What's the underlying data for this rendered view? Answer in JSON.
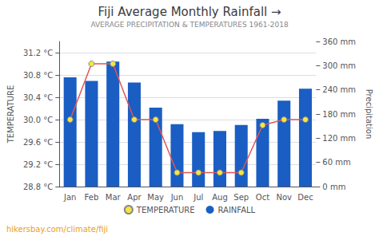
{
  "chart_data": {
    "type": "bar",
    "title": "Fiji Average Monthly Rainfall →",
    "subtitle": "AVERAGE PRECIPITATION & TEMPERATURES 1961-2018",
    "footer": "hikersbay.com/climate/fiji",
    "y_label": "TEMPERATURE",
    "y2_label": "Precipitation",
    "categories": [
      "Jan",
      "Feb",
      "Mar",
      "Apr",
      "May",
      "Jun",
      "Jul",
      "Aug",
      "Sep",
      "Oct",
      "Nov",
      "Dec"
    ],
    "series": [
      {
        "name": "TEMPERATURE",
        "type": "line",
        "axis": "y",
        "color": "#e05555",
        "marker": "circle",
        "marker_color": "#f5e642",
        "marker_edge_color": "#888888",
        "values": [
          30.0,
          31.0,
          31.0,
          30.0,
          30.0,
          29.05,
          29.05,
          29.05,
          29.05,
          29.9,
          30.0,
          30.0
        ]
      },
      {
        "name": "RAINFALL",
        "type": "bar",
        "axis": "y2",
        "color": "#1a5ec4",
        "values": [
          271,
          262,
          310,
          258,
          196,
          155,
          135,
          138,
          153,
          168,
          213,
          243
        ]
      }
    ],
    "ylim": [
      28.8,
      31.4
    ],
    "yticks": [
      {
        "value": 28.8,
        "label": "28.8 °C"
      },
      {
        "value": 29.2,
        "label": "29.2 °C"
      },
      {
        "value": 29.6,
        "label": "29.6 °C"
      },
      {
        "value": 30.0,
        "label": "30.0 °C"
      },
      {
        "value": 30.4,
        "label": "30.4 °C"
      },
      {
        "value": 30.8,
        "label": "30.8 °C"
      },
      {
        "value": 31.2,
        "label": "31.2 °C"
      }
    ],
    "y2lim": [
      0,
      360
    ],
    "y2ticks": [
      {
        "value": 0,
        "label": "0 mm"
      },
      {
        "value": 60,
        "label": "60 mm"
      },
      {
        "value": 120,
        "label": "120 mm"
      },
      {
        "value": 180,
        "label": "180 mm"
      },
      {
        "value": 240,
        "label": "240 mm"
      },
      {
        "value": 300,
        "label": "300 mm"
      },
      {
        "value": 360,
        "label": "360 mm"
      }
    ],
    "grid": true,
    "legend": "bottom"
  }
}
